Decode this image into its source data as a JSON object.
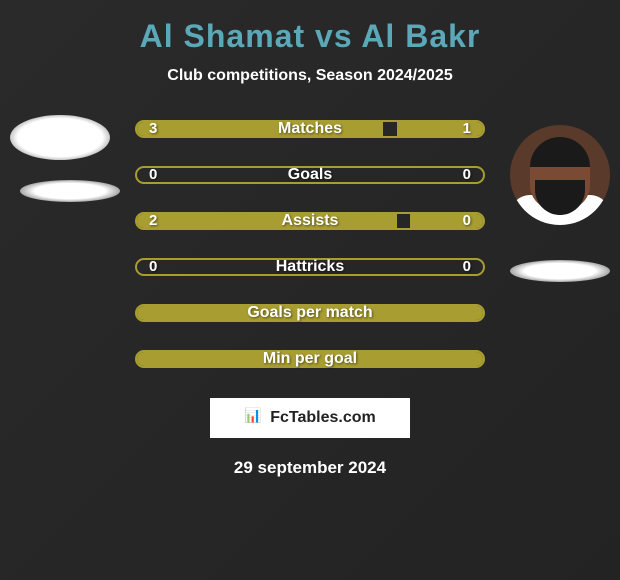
{
  "title": "Al Shamat vs Al Bakr",
  "subtitle": "Club competitions, Season 2024/2025",
  "date": "29 september 2024",
  "site": "FcTables.com",
  "bar_color": "#a89d30",
  "bar_border_color": "#a89d30",
  "background_color": "#2a2a2a",
  "text_color": "#ffffff",
  "title_color": "#5ba8b8",
  "stats": [
    {
      "label": "Matches",
      "left_val": "3",
      "right_val": "1",
      "left_fill_pct": 71,
      "right_fill_pct": 25
    },
    {
      "label": "Goals",
      "left_val": "0",
      "right_val": "0",
      "left_fill_pct": 0,
      "right_fill_pct": 0
    },
    {
      "label": "Assists",
      "left_val": "2",
      "right_val": "0",
      "left_fill_pct": 75,
      "right_fill_pct": 21
    },
    {
      "label": "Hattricks",
      "left_val": "0",
      "right_val": "0",
      "left_fill_pct": 0,
      "right_fill_pct": 0
    },
    {
      "label": "Goals per match",
      "left_val": "",
      "right_val": "",
      "left_fill_pct": 100,
      "right_fill_pct": 0,
      "full": true
    },
    {
      "label": "Min per goal",
      "left_val": "",
      "right_val": "",
      "left_fill_pct": 100,
      "right_fill_pct": 0,
      "full": true
    }
  ]
}
